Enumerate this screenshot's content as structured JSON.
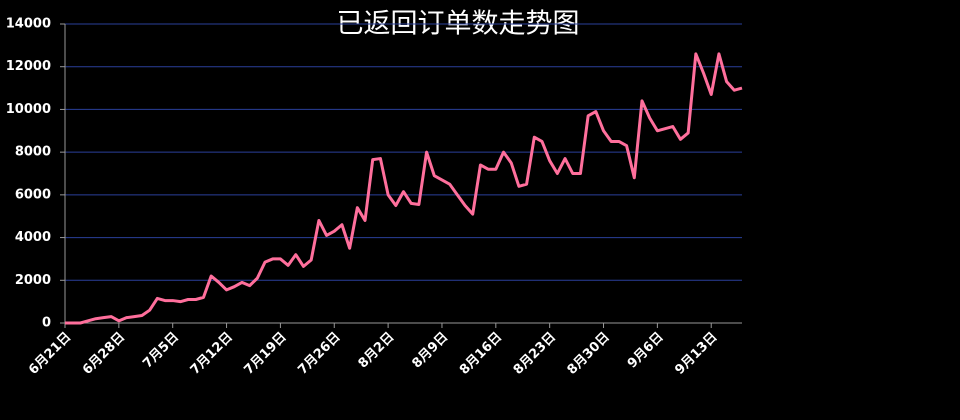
{
  "chart_data": {
    "type": "line",
    "title": "已返回订单数走势图",
    "categories": [
      "6月21日",
      null,
      null,
      null,
      null,
      null,
      null,
      "6月28日",
      null,
      null,
      null,
      null,
      null,
      null,
      "7月5日",
      null,
      null,
      null,
      null,
      null,
      null,
      "7月12日",
      null,
      null,
      null,
      null,
      null,
      null,
      "7月19日",
      null,
      null,
      null,
      null,
      null,
      null,
      "7月26日",
      null,
      null,
      null,
      null,
      null,
      null,
      "8月2日",
      null,
      null,
      null,
      null,
      null,
      null,
      "8月9日",
      null,
      null,
      null,
      null,
      null,
      null,
      "8月16日",
      null,
      null,
      null,
      null,
      null,
      null,
      "8月23日",
      null,
      null,
      null,
      null,
      null,
      null,
      "8月30日",
      null,
      null,
      null,
      null,
      null,
      null,
      "9月6日",
      null,
      null,
      null,
      null,
      null,
      null,
      "9月13日",
      null,
      null,
      null,
      null
    ],
    "series": [
      {
        "color": "#ff6f9c",
        "values": [
          0,
          0,
          0,
          100,
          200,
          250,
          300,
          100,
          250,
          300,
          350,
          600,
          1150,
          1050,
          1050,
          1000,
          1100,
          1100,
          1200,
          2200,
          1900,
          1550,
          1700,
          1900,
          1750,
          2100,
          2850,
          3000,
          3000,
          2700,
          3200,
          2650,
          2950,
          4800,
          4100,
          4300,
          4600,
          3500,
          5400,
          4800,
          7650,
          7700,
          6000,
          5500,
          6150,
          5600,
          5550,
          8000,
          6900,
          6700,
          6500,
          6000,
          5500,
          5100,
          7400,
          7200,
          7200,
          8000,
          7500,
          6400,
          6500,
          8700,
          8500,
          7600,
          7000,
          7700,
          7000,
          7000,
          9700,
          9900,
          9000,
          8500,
          8500,
          8300,
          6800,
          10400,
          9600,
          9000,
          9100,
          9200,
          8600,
          8900,
          12600,
          11700,
          10700,
          12600,
          11300,
          10900,
          11000
        ]
      }
    ],
    "ylim": [
      0,
      14000
    ],
    "yticks": [
      0,
      2000,
      4000,
      6000,
      8000,
      10000,
      12000,
      14000
    ],
    "grid": true
  }
}
